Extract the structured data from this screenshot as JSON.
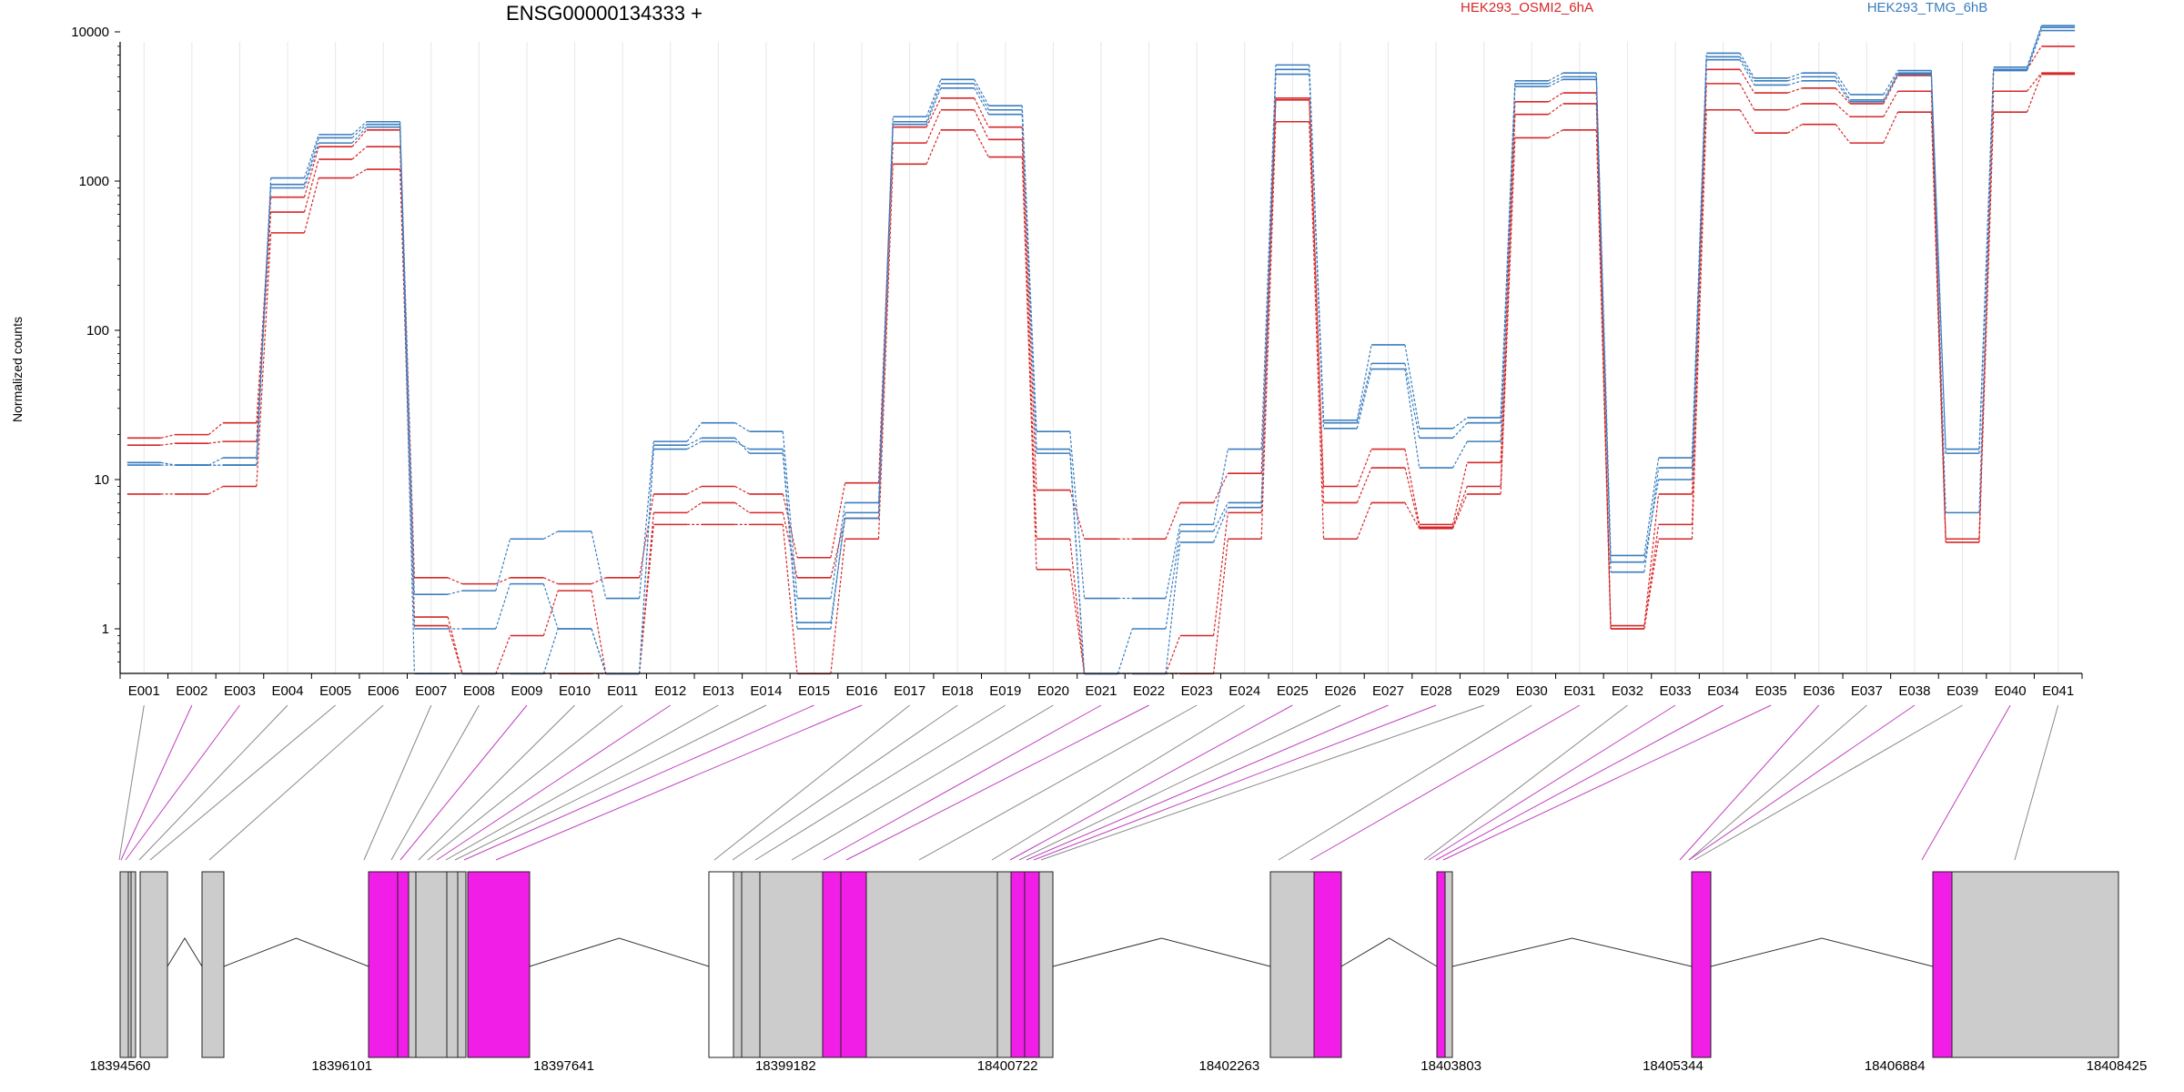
{
  "chart_data": {
    "type": "line",
    "title": "ENSG00000134333 +",
    "ylabel": "Normalized counts",
    "y_scale": "log",
    "ylim": [
      0.5,
      13000
    ],
    "y_ticks": [
      1,
      10,
      100,
      1000,
      10000
    ],
    "y_tick_labels": [
      "1",
      "10",
      "100",
      "1000",
      "10000"
    ],
    "grid": "vertical",
    "legend_position": "top-right",
    "categories": [
      "E001",
      "E002",
      "E003",
      "E004",
      "E005",
      "E006",
      "E007",
      "E008",
      "E009",
      "E010",
      "E011",
      "E012",
      "E013",
      "E014",
      "E015",
      "E016",
      "E017",
      "E018",
      "E019",
      "E020",
      "E021",
      "E022",
      "E023",
      "E024",
      "E025",
      "E026",
      "E027",
      "E028",
      "E029",
      "E030",
      "E031",
      "E032",
      "E033",
      "E034",
      "E035",
      "E036",
      "E037",
      "E038",
      "E039",
      "E040",
      "E041"
    ],
    "groups": [
      {
        "name": "HEK293_OSMI2_6hA",
        "color": "#d62728"
      },
      {
        "name": "HEK293_TMG_6hB",
        "color": "#3a7dbf"
      }
    ],
    "series": [
      {
        "group": "HEK293_OSMI2_6hA",
        "values": [
          19,
          20,
          24,
          780,
          1700,
          2200,
          2.2,
          2.0,
          2.2,
          2.0,
          2.2,
          8,
          9,
          8,
          3.0,
          9.5,
          2300,
          3600,
          2300,
          8.5,
          4.0,
          4.0,
          7.0,
          11,
          3600,
          9,
          16,
          5,
          13,
          3400,
          3900,
          1.05,
          8,
          5600,
          3900,
          4200,
          3300,
          5100,
          4.0,
          5600,
          8000
        ]
      },
      {
        "group": "HEK293_OSMI2_6hA",
        "values": [
          17,
          17.5,
          18,
          620,
          1400,
          1700,
          1.2,
          0.5,
          0.5,
          0.5,
          0.5,
          6,
          7,
          6,
          2.2,
          5.5,
          1800,
          3000,
          1900,
          4,
          0.5,
          0.5,
          0.9,
          6,
          3500,
          7,
          12,
          4.8,
          9,
          2800,
          3300,
          1.0,
          5,
          4500,
          3000,
          3300,
          2700,
          4000,
          4.0,
          4000,
          5300
        ]
      },
      {
        "group": "HEK293_OSMI2_6hA",
        "values": [
          8,
          8,
          9,
          450,
          1050,
          1200,
          1.05,
          0.5,
          0.9,
          1.8,
          0.5,
          5,
          5,
          5,
          0.5,
          4,
          1300,
          2200,
          1450,
          2.5,
          0.5,
          0.5,
          0.5,
          4,
          2500,
          4,
          7,
          4.7,
          8,
          1950,
          2200,
          1.0,
          4,
          3000,
          2100,
          2400,
          1800,
          2900,
          3.8,
          2900,
          5200
        ]
      },
      {
        "group": "HEK293_TMG_6hB",
        "values": [
          13,
          12.5,
          14,
          1050,
          2050,
          2500,
          1.7,
          1.8,
          4.0,
          4.5,
          1.6,
          18,
          24,
          21,
          1.6,
          7,
          2700,
          4800,
          3200,
          21,
          1.6,
          1.6,
          5,
          16,
          6000,
          25,
          80,
          22,
          26,
          4700,
          5300,
          3.1,
          14,
          7200,
          4900,
          5300,
          3800,
          5500,
          16,
          5800,
          11000
        ]
      },
      {
        "group": "HEK293_TMG_6hB",
        "values": [
          13,
          12.5,
          12.5,
          950,
          1950,
          2400,
          1.0,
          1.0,
          2.0,
          1.0,
          0.5,
          17,
          19,
          15,
          1.0,
          6,
          2500,
          4500,
          3000,
          16,
          0.5,
          1.0,
          4.5,
          7,
          5600,
          24,
          60,
          19,
          24,
          4500,
          5000,
          2.8,
          10,
          6800,
          4700,
          5000,
          3500,
          5300,
          15,
          5600,
          10700
        ]
      },
      {
        "group": "HEK293_TMG_6hB",
        "values": [
          12.5,
          12.5,
          12.5,
          900,
          1800,
          2300,
          0.5,
          0.5,
          0.5,
          1.0,
          0.5,
          16,
          18,
          16,
          1.1,
          5.5,
          2400,
          4200,
          2800,
          15,
          0.5,
          0.5,
          3.8,
          6.5,
          5200,
          22,
          55,
          12,
          18,
          4300,
          4800,
          2.4,
          12,
          6500,
          4400,
          4700,
          3400,
          5200,
          6,
          5500,
          10200
        ]
      }
    ],
    "exon_to_genome": {
      "lines": [
        {
          "exon": "E001",
          "gx": 131,
          "color": "#888888"
        },
        {
          "exon": "E002",
          "gx": 133,
          "color": "#c040c0"
        },
        {
          "exon": "E003",
          "gx": 138,
          "color": "#c040c0"
        },
        {
          "exon": "E004",
          "gx": 153,
          "color": "#888888"
        },
        {
          "exon": "E005",
          "gx": 165,
          "color": "#888888"
        },
        {
          "exon": "E006",
          "gx": 230,
          "color": "#888888"
        },
        {
          "exon": "E007",
          "gx": 400,
          "color": "#888888"
        },
        {
          "exon": "E008",
          "gx": 430,
          "color": "#888888"
        },
        {
          "exon": "E009",
          "gx": 440,
          "color": "#c040c0"
        },
        {
          "exon": "E010",
          "gx": 460,
          "color": "#888888"
        },
        {
          "exon": "E011",
          "gx": 470,
          "color": "#888888"
        },
        {
          "exon": "E012",
          "gx": 480,
          "color": "#c040c0"
        },
        {
          "exon": "E013",
          "gx": 490,
          "color": "#888888"
        },
        {
          "exon": "E014",
          "gx": 500,
          "color": "#888888"
        },
        {
          "exon": "E015",
          "gx": 510,
          "color": "#c040c0"
        },
        {
          "exon": "E016",
          "gx": 545,
          "color": "#c040c0"
        },
        {
          "exon": "E017",
          "gx": 785,
          "color": "#888888"
        },
        {
          "exon": "E018",
          "gx": 805,
          "color": "#888888"
        },
        {
          "exon": "E019",
          "gx": 830,
          "color": "#888888"
        },
        {
          "exon": "E020",
          "gx": 870,
          "color": "#888888"
        },
        {
          "exon": "E021",
          "gx": 905,
          "color": "#c040c0"
        },
        {
          "exon": "E022",
          "gx": 930,
          "color": "#c040c0"
        },
        {
          "exon": "E023",
          "gx": 1010,
          "color": "#888888"
        },
        {
          "exon": "E024",
          "gx": 1090,
          "color": "#888888"
        },
        {
          "exon": "E025",
          "gx": 1110,
          "color": "#c040c0"
        },
        {
          "exon": "E026",
          "gx": 1120,
          "color": "#888888"
        },
        {
          "exon": "E027",
          "gx": 1128,
          "color": "#c040c0"
        },
        {
          "exon": "E028",
          "gx": 1136,
          "color": "#c040c0"
        },
        {
          "exon": "E029",
          "gx": 1144,
          "color": "#888888"
        },
        {
          "exon": "E030",
          "gx": 1405,
          "color": "#888888"
        },
        {
          "exon": "E031",
          "gx": 1440,
          "color": "#c040c0"
        },
        {
          "exon": "E032",
          "gx": 1565,
          "color": "#888888"
        },
        {
          "exon": "E033",
          "gx": 1570,
          "color": "#c040c0"
        },
        {
          "exon": "E034",
          "gx": 1578,
          "color": "#c040c0"
        },
        {
          "exon": "E035",
          "gx": 1586,
          "color": "#c040c0"
        },
        {
          "exon": "E036",
          "gx": 1846,
          "color": "#c040c0"
        },
        {
          "exon": "E037",
          "gx": 1856,
          "color": "#888888"
        },
        {
          "exon": "E038",
          "gx": 1856,
          "color": "#c040c0"
        },
        {
          "exon": "E039",
          "gx": 1862,
          "color": "#888888"
        },
        {
          "exon": "E040",
          "gx": 2112,
          "color": "#c040c0"
        },
        {
          "exon": "E041",
          "gx": 2214,
          "color": "#888888"
        }
      ]
    },
    "gene_model": {
      "coordinate_ticks": [
        "18394560",
        "18396101",
        "18397641",
        "18399182",
        "18400722",
        "18402263",
        "18403803",
        "18405344",
        "18406884",
        "18408425"
      ],
      "exon_colors": {
        "normal": "#cccccc",
        "differential": "#f01ee6",
        "blank": "#ffffff"
      }
    }
  }
}
